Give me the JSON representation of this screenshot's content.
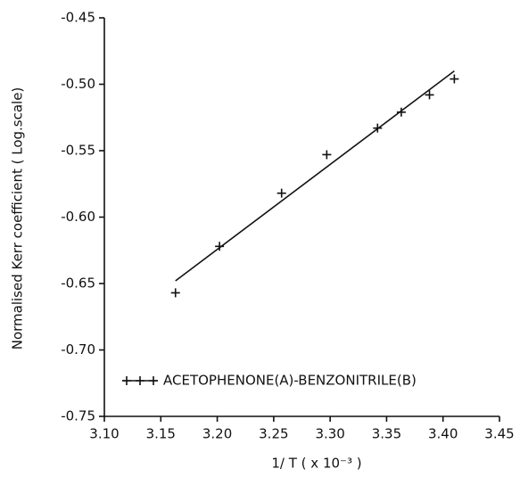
{
  "chart_data": {
    "type": "scatter",
    "xlabel": "1/ T ( x 10⁻³ )",
    "ylabel": "Normalised Kerr coefficient ( Log.scale)",
    "xlim": [
      3.1,
      3.45
    ],
    "xticks": [
      {
        "value": 3.1,
        "label": "3.10"
      },
      3.15,
      {
        "value": 3.2,
        "label": "3.20"
      },
      3.25,
      {
        "value": 3.3,
        "label": "3.30"
      },
      3.35,
      {
        "value": 3.4,
        "label": "3.40"
      },
      3.45
    ],
    "ylim": [
      -0.75,
      -0.45
    ],
    "yticks": [
      -0.75,
      {
        "value": -0.7,
        "label": "-0.70"
      },
      -0.65,
      {
        "value": -0.6,
        "label": "-0.60"
      },
      -0.55,
      {
        "value": -0.5,
        "label": "-0.50"
      },
      -0.45
    ],
    "legend": "lower-left",
    "series": [
      {
        "name": "ACETOPHENONE(A)-BENZONITRILE(B)",
        "color": "#111111",
        "x": [
          3.163,
          3.202,
          3.257,
          3.297,
          3.342,
          3.363,
          3.388,
          3.41
        ],
        "values": [
          -0.657,
          -0.622,
          -0.582,
          -0.553,
          -0.533,
          -0.521,
          -0.508,
          -0.496
        ]
      }
    ],
    "fit_line": {
      "color": "#111111",
      "x": [
        3.163,
        3.41
      ],
      "values": [
        -0.648,
        -0.49
      ]
    }
  }
}
